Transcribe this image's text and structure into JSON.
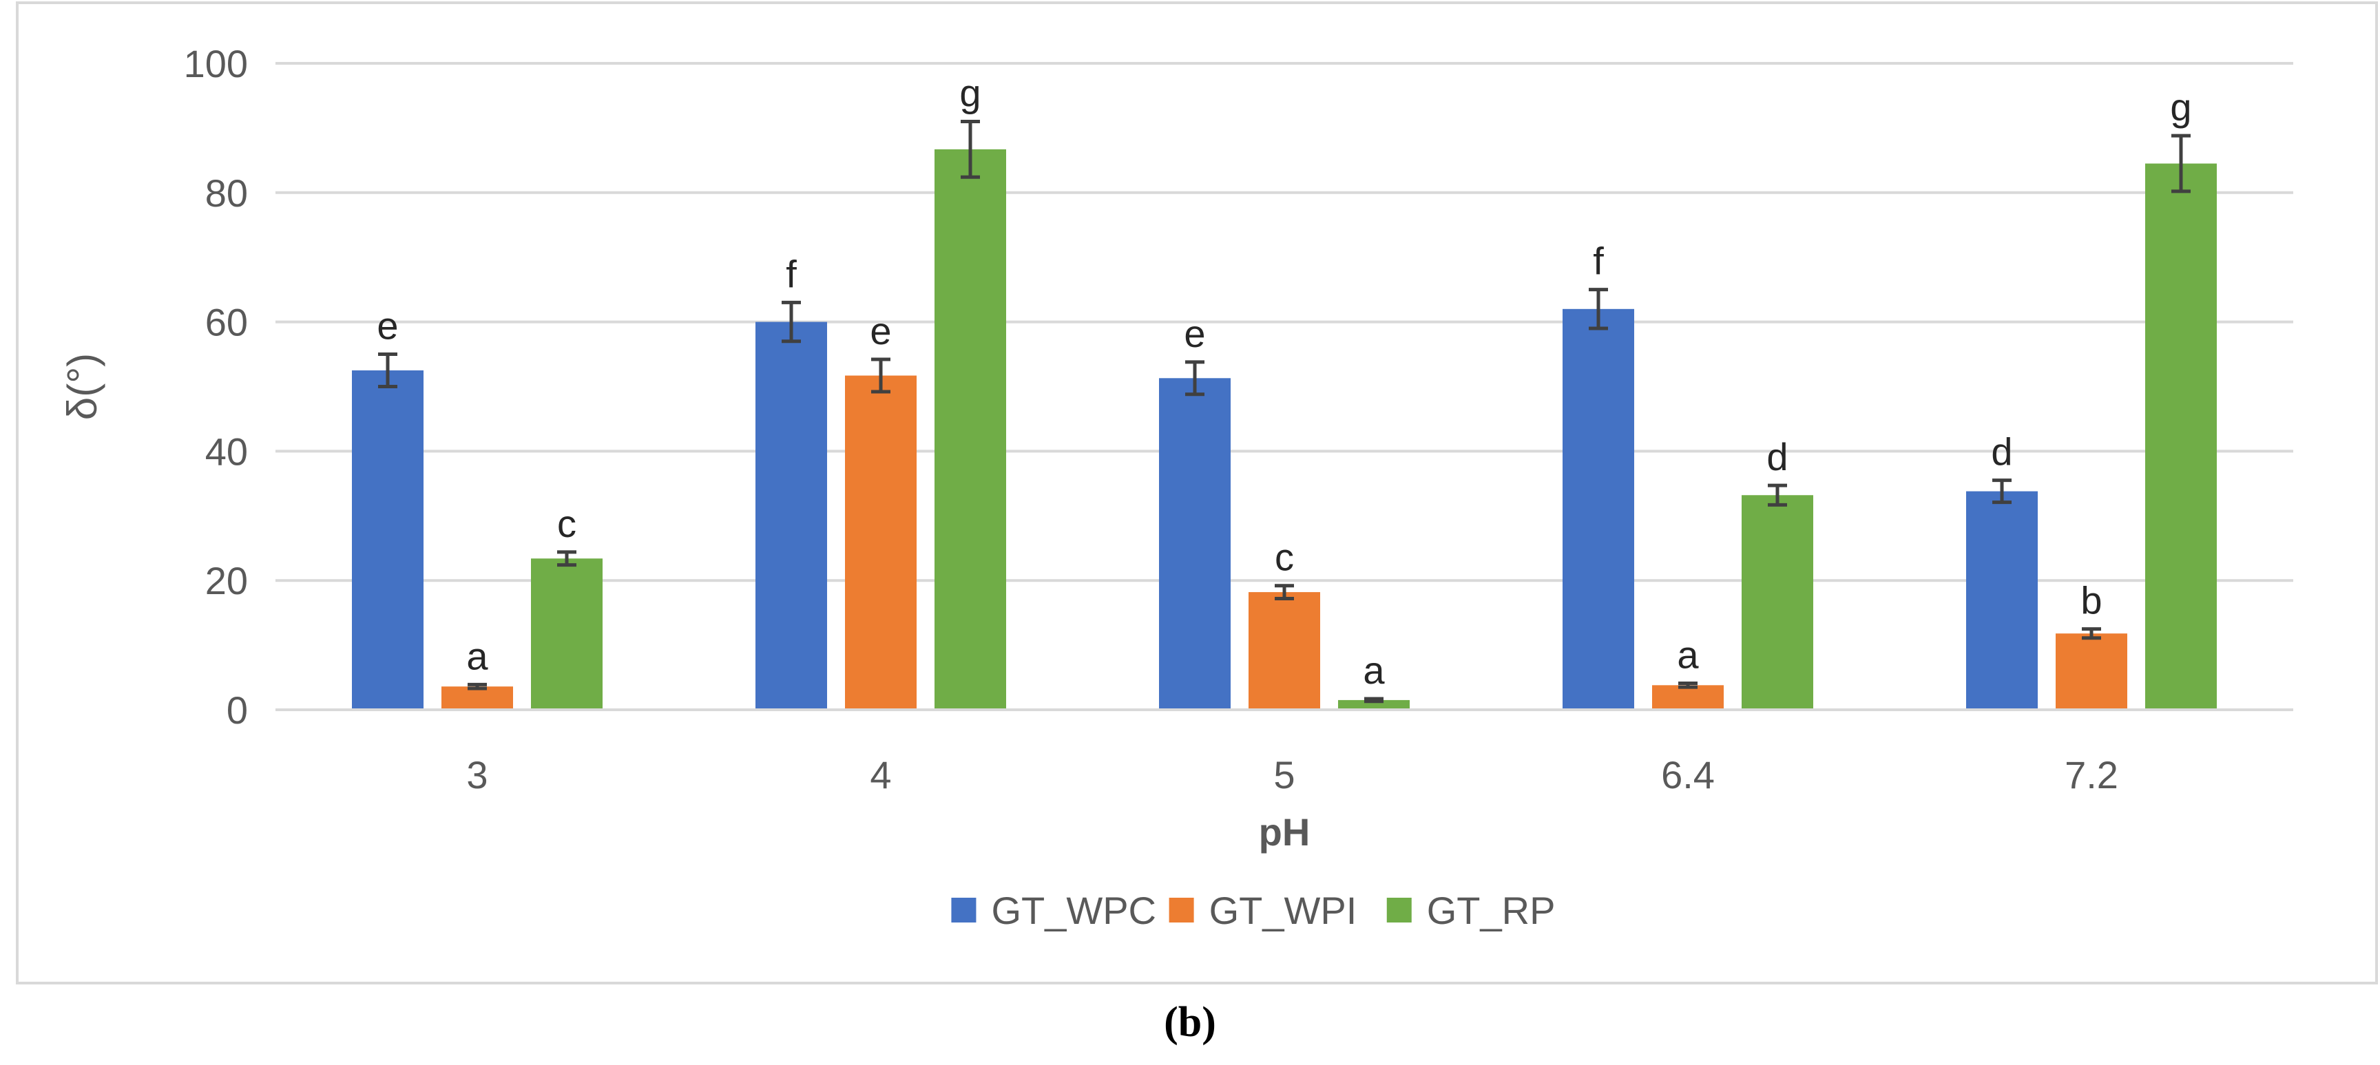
{
  "chart_data": {
    "type": "bar",
    "title": "",
    "xlabel": "pH",
    "ylabel": "δ(°)",
    "ylim": [
      0,
      100
    ],
    "yticks": [
      0,
      20,
      40,
      60,
      80,
      100
    ],
    "grid": true,
    "legend_position": "bottom",
    "categories": [
      "3",
      "4",
      "5",
      "6.4",
      "7.2"
    ],
    "series": [
      {
        "name": "GT_WPC",
        "color": "#4472c4",
        "values": [
          52.5,
          60.0,
          51.3,
          62.0,
          33.8
        ],
        "errors": [
          2.5,
          3.0,
          2.5,
          3.0,
          1.7
        ],
        "letters": [
          "e",
          "f",
          "e",
          "f",
          "d"
        ]
      },
      {
        "name": "GT_WPI",
        "color": "#ed7d31",
        "values": [
          3.6,
          51.7,
          18.2,
          3.8,
          11.8
        ],
        "errors": [
          0.3,
          2.5,
          1.0,
          0.3,
          0.7
        ],
        "letters": [
          "a",
          "e",
          "c",
          "a",
          "b"
        ]
      },
      {
        "name": "GT_RP",
        "color": "#70ad47",
        "values": [
          23.4,
          86.7,
          1.5,
          33.2,
          84.5
        ],
        "errors": [
          1.0,
          4.3,
          0.2,
          1.5,
          4.3
        ],
        "letters": [
          "c",
          "g",
          "a",
          "d",
          "g"
        ]
      }
    ]
  },
  "panel_label": "(b)"
}
